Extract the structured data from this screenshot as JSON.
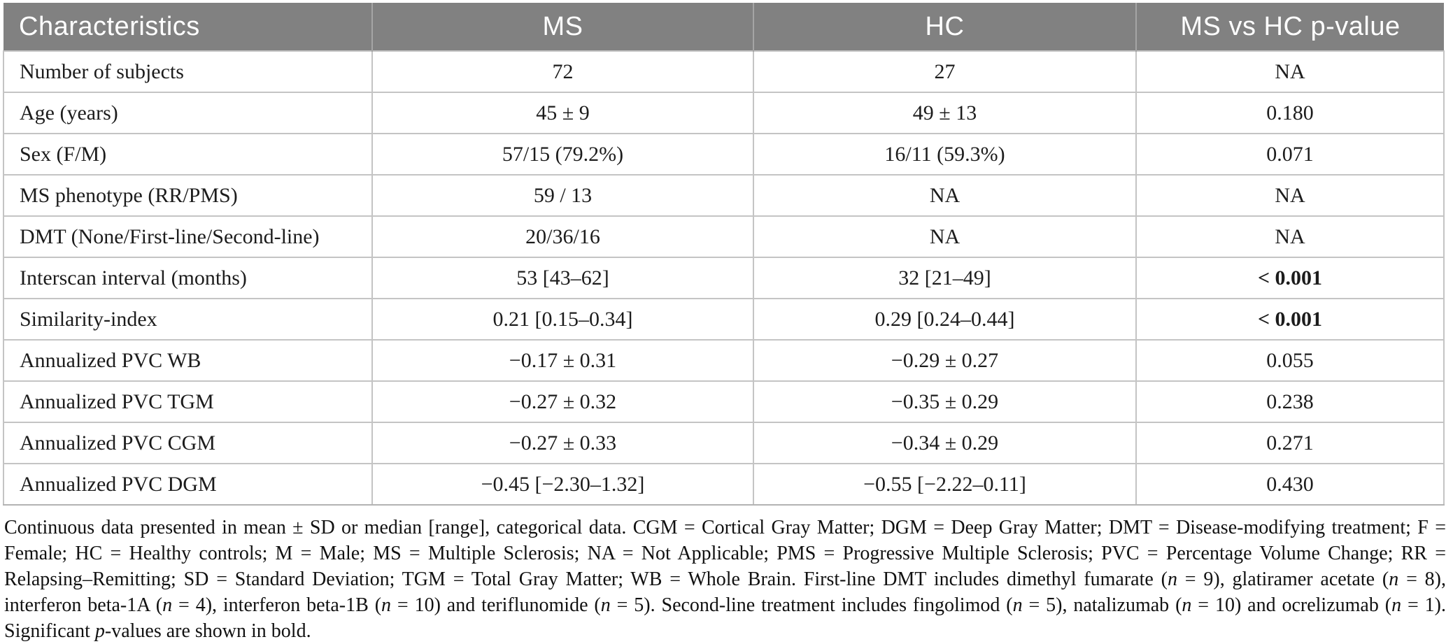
{
  "colors": {
    "header_bg": "#818181",
    "header_text": "#ffffff",
    "header_divider": "#a5a5a5",
    "grid_line": "#c4c4c4",
    "bottom_rule": "#b3b3b3",
    "body_text": "#1c1c1c",
    "footnote_text": "#111111"
  },
  "table": {
    "columns": [
      {
        "key": "characteristic",
        "align": "left",
        "segments": [
          {
            "text": "Characteristics"
          }
        ]
      },
      {
        "key": "ms",
        "align": "center",
        "segments": [
          {
            "text": "MS"
          }
        ]
      },
      {
        "key": "hc",
        "align": "center",
        "segments": [
          {
            "text": "HC"
          }
        ]
      },
      {
        "key": "p",
        "align": "center",
        "segments": [
          {
            "text": "MS vs HC "
          },
          {
            "text": "p",
            "italic": true
          },
          {
            "text": "-value"
          }
        ]
      }
    ],
    "rows": [
      {
        "characteristic": "Number of subjects",
        "ms": "72",
        "hc": "27",
        "p": "NA",
        "p_bold": false
      },
      {
        "characteristic": "Age (years)",
        "ms": "45 ± 9",
        "hc": "49 ± 13",
        "p": "0.180",
        "p_bold": false
      },
      {
        "characteristic": "Sex (F/M)",
        "ms": "57/15 (79.2%)",
        "hc": "16/11 (59.3%)",
        "p": "0.071",
        "p_bold": false
      },
      {
        "characteristic": "MS phenotype (RR/PMS)",
        "ms": "59 / 13",
        "hc": "NA",
        "p": "NA",
        "p_bold": false
      },
      {
        "characteristic": "DMT (None/First-line/Second-line)",
        "ms": "20/36/16",
        "hc": "NA",
        "p": "NA",
        "p_bold": false
      },
      {
        "characteristic": "Interscan interval (months)",
        "ms": "53 [43–62]",
        "hc": "32 [21–49]",
        "p": "< 0.001",
        "p_bold": true
      },
      {
        "characteristic": "Similarity-index",
        "ms": "0.21 [0.15–0.34]",
        "hc": "0.29 [0.24–0.44]",
        "p": "< 0.001",
        "p_bold": true
      },
      {
        "characteristic": "Annualized PVC WB",
        "ms": "−0.17 ± 0.31",
        "hc": "−0.29 ± 0.27",
        "p": "0.055",
        "p_bold": false
      },
      {
        "characteristic": "Annualized PVC TGM",
        "ms": "−0.27 ± 0.32",
        "hc": "−0.35 ± 0.29",
        "p": "0.238",
        "p_bold": false
      },
      {
        "characteristic": "Annualized PVC CGM",
        "ms": "−0.27 ± 0.33",
        "hc": "−0.34 ± 0.29",
        "p": "0.271",
        "p_bold": false
      },
      {
        "characteristic": "Annualized PVC DGM",
        "ms": "−0.45 [−2.30–1.32]",
        "hc": "−0.55 [−2.22–0.11]",
        "p": "0.430",
        "p_bold": false
      }
    ]
  },
  "footnote": {
    "segments": [
      {
        "text": "Continuous data presented in mean ± SD or median [range], categorical data. CGM = Cortical Gray Matter; DGM = Deep Gray Matter; DMT = Disease-modifying treatment; F = Female; HC = Healthy controls; M = Male; MS = Multiple Sclerosis; NA = Not Applicable; PMS = Progressive Multiple Sclerosis; PVC = Percentage Volume Change; RR = Relapsing–Remitting; SD = Standard Deviation; TGM = Total Gray Matter; WB = Whole Brain. First-line DMT includes dimethyl fumarate ("
      },
      {
        "text": "n",
        "italic": true
      },
      {
        "text": " = 9), glatiramer acetate ("
      },
      {
        "text": "n",
        "italic": true
      },
      {
        "text": " = 8), interferon beta-1A ("
      },
      {
        "text": "n",
        "italic": true
      },
      {
        "text": " = 4), interferon beta-1B ("
      },
      {
        "text": "n",
        "italic": true
      },
      {
        "text": " = 10) and teriflunomide ("
      },
      {
        "text": "n",
        "italic": true
      },
      {
        "text": " = 5). Second-line treatment includes fingolimod ("
      },
      {
        "text": "n",
        "italic": true
      },
      {
        "text": " = 5), natalizumab ("
      },
      {
        "text": "n",
        "italic": true
      },
      {
        "text": " = 10) and ocrelizumab ("
      },
      {
        "text": "n",
        "italic": true
      },
      {
        "text": " = 1). Significant "
      },
      {
        "text": "p",
        "italic": true
      },
      {
        "text": "-values are shown in bold."
      }
    ]
  }
}
